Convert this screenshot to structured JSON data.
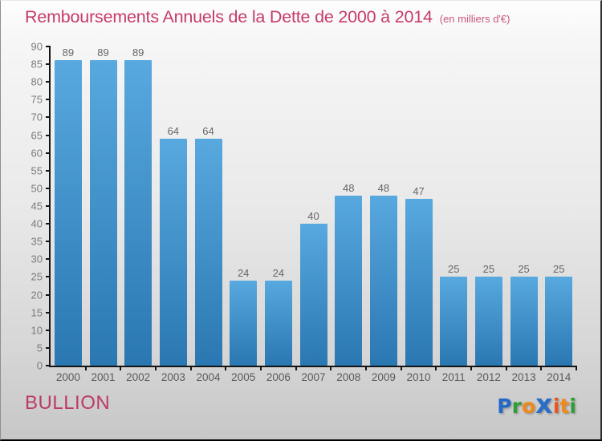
{
  "header": {
    "title": "Remboursements Annuels de la Dette de 2000 à 2014",
    "subtitle": "(en milliers d'€)"
  },
  "chart_data": {
    "type": "bar",
    "title": "Remboursements Annuels de la Dette de 2000 à 2014",
    "subtitle": "(en milliers d'€)",
    "unit": "milliers d'€",
    "categories": [
      "2000",
      "2001",
      "2002",
      "2003",
      "2004",
      "2005",
      "2006",
      "2007",
      "2008",
      "2009",
      "2010",
      "2011",
      "2012",
      "2013",
      "2014"
    ],
    "values": [
      89,
      89,
      89,
      64,
      64,
      24,
      24,
      40,
      48,
      48,
      47,
      25,
      25,
      25,
      25
    ],
    "ylim": [
      0,
      90
    ],
    "yticks": [
      0,
      5,
      10,
      15,
      20,
      25,
      30,
      35,
      40,
      45,
      50,
      55,
      60,
      65,
      70,
      75,
      80,
      85,
      90
    ],
    "grid": false,
    "legend_position": "none",
    "bar_color_top": "#58a9df",
    "bar_color_bottom": "#2a77b2",
    "axis_color": "#141414",
    "value_label_color": "#666666",
    "tick_label_color": "#7b7b7b"
  },
  "footer": {
    "location": "BULLION",
    "logo_letters": [
      {
        "char": "P",
        "color": "#2268c6",
        "big": false
      },
      {
        "char": "r",
        "color": "#2f9e38",
        "big": false
      },
      {
        "char": "o",
        "color": "#f0891a",
        "big": false
      },
      {
        "char": "x",
        "color": "#2b6ec6",
        "big": true
      },
      {
        "char": "i",
        "color": "#e8571c",
        "big": false
      },
      {
        "char": "t",
        "color": "#f0891a",
        "big": false
      },
      {
        "char": "i",
        "color": "#2f9e38",
        "big": false
      }
    ]
  },
  "theme": {
    "accent_pink": "#c63b69",
    "background_top": "#fdfdfd",
    "background_bottom": "#c7c7c7"
  }
}
